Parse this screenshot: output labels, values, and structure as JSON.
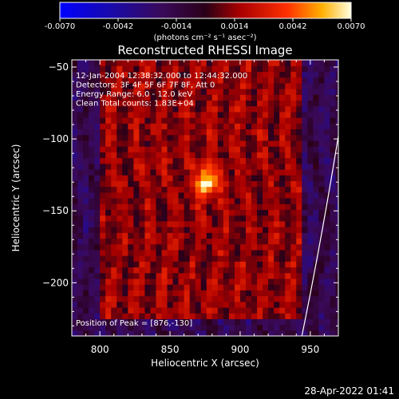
{
  "chart_data": {
    "type": "heatmap",
    "title": "Reconstructed RHESSI Image",
    "xlabel": "Heliocentric X (arcsec)",
    "ylabel": "Heliocentric Y (arcsec)",
    "xlim": [
      780,
      970
    ],
    "ylim": [
      -237,
      -45
    ],
    "xticks": [
      800,
      850,
      900,
      950
    ],
    "yticks": [
      -50,
      -100,
      -150,
      -200
    ],
    "colorbar": {
      "range": [
        -0.007,
        0.007
      ],
      "ticks": [
        -0.007,
        -0.0042,
        -0.0014,
        0.0014,
        0.0042,
        0.007
      ],
      "tick_labels": [
        "-0.0070",
        "-0.0042",
        "-0.0014",
        "0.0014",
        "0.0042",
        "0.0070"
      ],
      "label": "(photons cm⁻² s⁻¹ asec⁻²)"
    },
    "annotations": [
      "12-Jan-2004 12:38:32.000 to 12:44:32.000",
      "Detectors: 3F 4F 5F 6F 7F 8F, Att 0",
      "Energy Range: 6.0 - 12.0 keV",
      "Clean      Total counts: 1.83E+04"
    ],
    "peak_label": "Position of Peak = [876,-130]",
    "peak": {
      "x": 876,
      "y": -130,
      "value": 0.007
    },
    "limb_points": [
      [
        970,
        -98
      ],
      [
        944,
        -237
      ]
    ]
  },
  "footer": {
    "timestamp": "28-Apr-2022 01:41"
  }
}
